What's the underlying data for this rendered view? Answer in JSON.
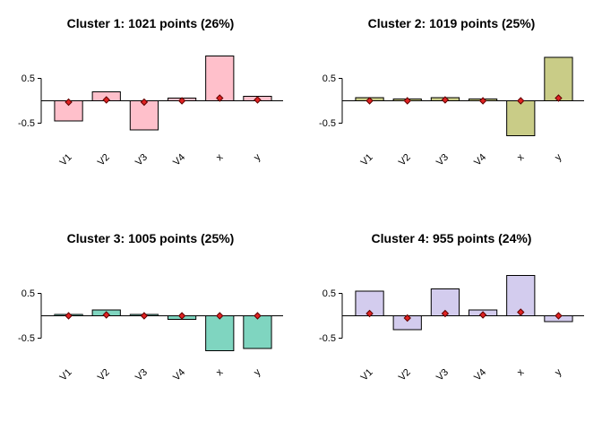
{
  "style": {
    "background": "#FFFFFF",
    "axis_color": "#000000",
    "marker_fill": "#E02222",
    "marker_stroke": "#600000",
    "tick_font_size": 11,
    "label_font_size": 11
  },
  "chart_data": [
    {
      "type": "bar",
      "title": "Cluster 1: 1021 points (26%)",
      "categories": [
        "V1",
        "V2",
        "V3",
        "V4",
        "x",
        "y"
      ],
      "values": [
        -0.45,
        0.2,
        -0.65,
        0.06,
        1.0,
        0.1
      ],
      "markers": [
        -0.03,
        0.02,
        -0.03,
        0.0,
        0.06,
        0.02
      ],
      "bar_color": "#FFC0CB",
      "ylim": [
        -0.95,
        1.15
      ],
      "yticks": [
        -0.5,
        0.5
      ],
      "ylabel": "",
      "xlabel": "",
      "grid": false,
      "legend": "none"
    },
    {
      "type": "bar",
      "title": "Cluster 2: 1019 points (25%)",
      "categories": [
        "V1",
        "V2",
        "V3",
        "V4",
        "x",
        "y"
      ],
      "values": [
        0.07,
        0.04,
        0.07,
        0.04,
        -0.78,
        0.97
      ],
      "markers": [
        0.0,
        0.0,
        0.02,
        0.0,
        0.0,
        0.06
      ],
      "bar_color": "#C9CC87",
      "ylim": [
        -0.95,
        1.15
      ],
      "yticks": [
        -0.5,
        0.5
      ],
      "ylabel": "",
      "xlabel": "",
      "grid": false,
      "legend": "none"
    },
    {
      "type": "bar",
      "title": "Cluster 3: 1005 points (25%)",
      "categories": [
        "V1",
        "V2",
        "V3",
        "V4",
        "x",
        "y"
      ],
      "values": [
        0.03,
        0.13,
        0.03,
        -0.08,
        -0.78,
        -0.73
      ],
      "markers": [
        0.0,
        0.02,
        0.0,
        0.0,
        0.0,
        0.0
      ],
      "bar_color": "#7FD5C0",
      "ylim": [
        -0.95,
        1.15
      ],
      "yticks": [
        -0.5,
        0.5
      ],
      "ylabel": "",
      "xlabel": "",
      "grid": false,
      "legend": "none"
    },
    {
      "type": "bar",
      "title": "Cluster 4: 955 points (24%)",
      "categories": [
        "V1",
        "V2",
        "V3",
        "V4",
        "x",
        "y"
      ],
      "values": [
        0.55,
        -0.31,
        0.6,
        0.13,
        0.9,
        -0.13
      ],
      "markers": [
        0.05,
        -0.05,
        0.05,
        0.02,
        0.08,
        0.0
      ],
      "bar_color": "#D3CCEE",
      "ylim": [
        -0.95,
        1.15
      ],
      "yticks": [
        -0.5,
        0.5
      ],
      "ylabel": "",
      "xlabel": "",
      "grid": false,
      "legend": "none"
    }
  ]
}
